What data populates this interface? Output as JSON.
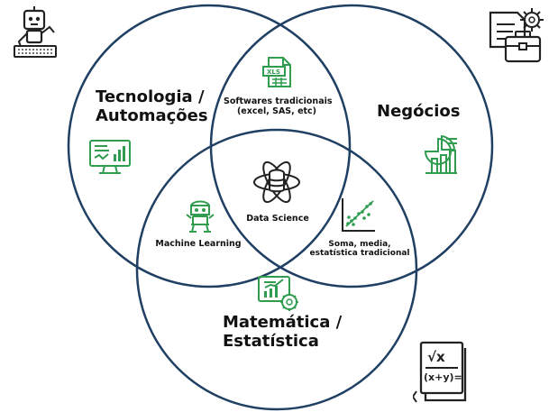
{
  "diagram": {
    "circles": [
      {
        "label_line1": "Tecnologia /",
        "label_line2": "Automações"
      },
      {
        "label_line1": "Negócios"
      },
      {
        "label_line1": "Matemática /",
        "label_line2": "Estatística"
      }
    ],
    "intersections": {
      "tech_business": {
        "line1": "Softwares tradicionais",
        "line2": "(excel, SAS, etc)"
      },
      "tech_math": {
        "line1": "Machine Learning"
      },
      "business_math": {
        "line1": "Soma, media,",
        "line2": "estatística tradicional"
      },
      "center": {
        "line1": "Data Science"
      }
    },
    "xls_icon_text": "XLS",
    "formula_icon": {
      "top": "√x",
      "bottom": "(x+y)="
    },
    "colors": {
      "circle_stroke": "#1f3f63",
      "icon_green": "#2f9c4f",
      "icon_dark": "#222222"
    },
    "icons": {
      "top_left": "robot-typing-icon",
      "top_right": "briefcase-document-gear-icon",
      "bottom_right": "formula-book-icon",
      "tech": "monitor-dashboard-icon",
      "business": "business-chart-icon",
      "math": "analytics-report-icon",
      "center": "atom-data-science-icon",
      "machine_learning": "robot-reading-icon",
      "statistics": "scatter-plot-icon",
      "software": "xls-file-icon"
    }
  }
}
